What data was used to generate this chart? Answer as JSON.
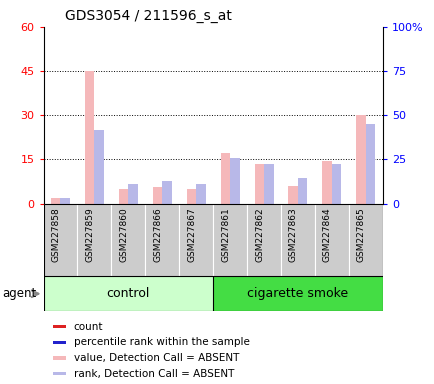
{
  "title": "GDS3054 / 211596_s_at",
  "samples": [
    "GSM227858",
    "GSM227859",
    "GSM227860",
    "GSM227866",
    "GSM227867",
    "GSM227861",
    "GSM227862",
    "GSM227863",
    "GSM227864",
    "GSM227865"
  ],
  "count_absent": [
    2.0,
    45.0,
    5.0,
    5.5,
    5.0,
    17.0,
    13.5,
    6.0,
    14.5,
    30.0
  ],
  "rank_absent": [
    2.0,
    25.0,
    6.5,
    7.5,
    6.5,
    15.5,
    13.5,
    8.5,
    13.5,
    27.0
  ],
  "left_ylim": [
    0,
    60
  ],
  "right_ylim": [
    0,
    100
  ],
  "left_yticks": [
    0,
    15,
    30,
    45,
    60
  ],
  "right_yticks": [
    0,
    25,
    50,
    75,
    100
  ],
  "right_yticklabels": [
    "0",
    "25",
    "50",
    "75",
    "100%"
  ],
  "color_count_absent": "#f5b8ba",
  "color_rank_absent": "#b8b8e8",
  "color_control_light": "#ccffcc",
  "color_smoke_dark": "#44dd44",
  "legend_items": [
    {
      "label": "count",
      "color": "#dd2222"
    },
    {
      "label": "percentile rank within the sample",
      "color": "#2222cc"
    },
    {
      "label": "value, Detection Call = ABSENT",
      "color": "#f5b8ba"
    },
    {
      "label": "rank, Detection Call = ABSENT",
      "color": "#b8b8e8"
    }
  ],
  "agent_label": "agent",
  "control_label": "control",
  "smoke_label": "cigarette smoke",
  "n_control": 5,
  "n_smoke": 5
}
